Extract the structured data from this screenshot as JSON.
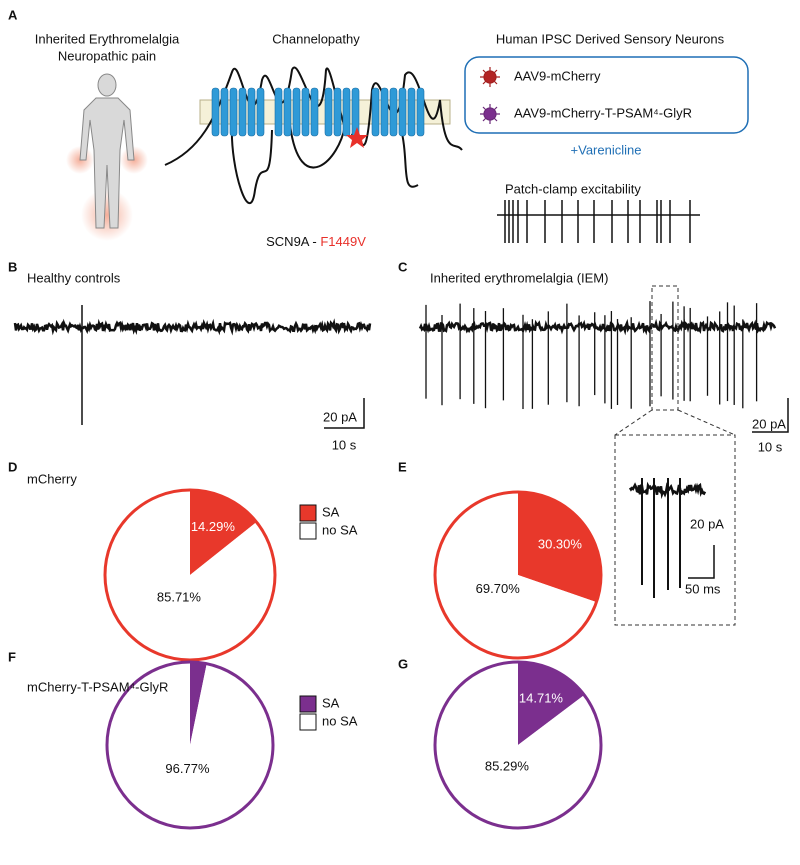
{
  "panel_labels": [
    "A",
    "B",
    "C",
    "D",
    "E",
    "F",
    "G"
  ],
  "panel_a": {
    "disease": [
      "Inherited Erythromelalgia",
      "Neuropathic pain"
    ],
    "channel_title": "Channelopathy",
    "gene": "SCN9A",
    "gene_separator": " - ",
    "mutation": "F1449V",
    "neurons_title": "Human IPSC Derived Sensory Neurons",
    "constructs": [
      "AAV9-mCherry",
      "AAV9-mCherry-T-PSAM⁴-GlyR"
    ],
    "treatment": "+Varenicline",
    "recording": "Patch-clamp excitability"
  },
  "panel_b": {
    "title": "Healthy controls",
    "scale_current": "20 pA",
    "scale_time": "10 s"
  },
  "panel_c": {
    "title": "Inherited erythromelalgia (IEM)",
    "scale_current": "20 pA",
    "scale_time": "10 s",
    "inset_scale_current": "20 pA",
    "inset_scale_time": "50 ms"
  },
  "chart_data": [
    {
      "type": "pie",
      "title": "mCherry",
      "categories": [
        "SA",
        "no SA"
      ],
      "values": [
        14.29,
        85.71
      ],
      "value_labels": [
        "14.29%",
        "85.71%"
      ],
      "colors": [
        "#e8382b",
        "#ffffff"
      ],
      "edge_color": "#e8382b"
    },
    {
      "type": "pie",
      "values": [
        30.3,
        69.7
      ],
      "value_labels": [
        "30.30%",
        "69.70%"
      ],
      "colors": [
        "#e8382b",
        "#ffffff"
      ],
      "edge_color": "#e8382b"
    },
    {
      "type": "pie",
      "title": "mCherry-T-PSAM⁴-GlyR",
      "categories": [
        "SA",
        "no SA"
      ],
      "values": [
        3.23,
        96.77
      ],
      "value_labels": [
        null,
        "96.77%"
      ],
      "colors": [
        "#7b2f8e",
        "#ffffff"
      ],
      "edge_color": "#7b2f8e"
    },
    {
      "type": "pie",
      "values": [
        14.71,
        85.29
      ],
      "value_labels": [
        "14.71%",
        "85.29%"
      ],
      "colors": [
        "#7b2f8e",
        "#ffffff"
      ],
      "edge_color": "#7b2f8e"
    }
  ]
}
